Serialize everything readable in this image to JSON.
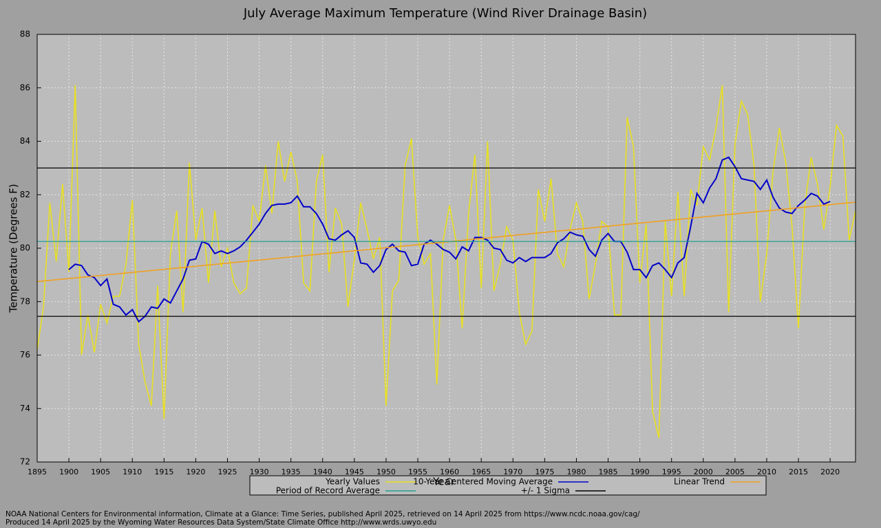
{
  "chart_data": {
    "type": "line",
    "title": "July Average Maximum Temperature (Wind River Drainage Basin)",
    "xlabel": "Year",
    "ylabel": "Temperature (Degrees F)",
    "footer": [
      "NOAA National Centers for Environmental information, Climate at a Glance: Time Series, published April 2025, retrieved on 14 April 2025 from https://www.ncdc.noaa.gov/cag/",
      "Produced 14 April 2025 by the Wyoming Water Resources Data System/State Climate Office http://www.wrds.uwyo.edu"
    ],
    "xlim": [
      1895,
      2024
    ],
    "ylim": [
      72,
      88
    ],
    "xticks": [
      1895,
      1900,
      1905,
      1910,
      1915,
      1920,
      1925,
      1930,
      1935,
      1940,
      1945,
      1950,
      1955,
      1960,
      1965,
      1970,
      1975,
      1980,
      1985,
      1990,
      1995,
      2000,
      2005,
      2010,
      2015,
      2020
    ],
    "yticks": [
      72,
      74,
      76,
      78,
      80,
      82,
      84,
      86,
      88
    ],
    "grid": true,
    "x": [
      1895,
      1896,
      1897,
      1898,
      1899,
      1900,
      1901,
      1902,
      1903,
      1904,
      1905,
      1906,
      1907,
      1908,
      1909,
      1910,
      1911,
      1912,
      1913,
      1914,
      1915,
      1916,
      1917,
      1918,
      1919,
      1920,
      1921,
      1922,
      1923,
      1924,
      1925,
      1926,
      1927,
      1928,
      1929,
      1930,
      1931,
      1932,
      1933,
      1934,
      1935,
      1936,
      1937,
      1938,
      1939,
      1940,
      1941,
      1942,
      1943,
      1944,
      1945,
      1946,
      1947,
      1948,
      1949,
      1950,
      1951,
      1952,
      1953,
      1954,
      1955,
      1956,
      1957,
      1958,
      1959,
      1960,
      1961,
      1962,
      1963,
      1964,
      1965,
      1966,
      1967,
      1968,
      1969,
      1970,
      1971,
      1972,
      1973,
      1974,
      1975,
      1976,
      1977,
      1978,
      1979,
      1980,
      1981,
      1982,
      1983,
      1984,
      1985,
      1986,
      1987,
      1988,
      1989,
      1990,
      1991,
      1992,
      1993,
      1994,
      1995,
      1996,
      1997,
      1998,
      1999,
      2000,
      2001,
      2002,
      2003,
      2004,
      2005,
      2006,
      2007,
      2008,
      2009,
      2010,
      2011,
      2012,
      2013,
      2014,
      2015,
      2016,
      2017,
      2018,
      2019,
      2020,
      2021,
      2022,
      2023,
      2024
    ],
    "series": [
      {
        "name": "Yearly Values",
        "color": "#e8e020",
        "values": [
          76.2,
          77.8,
          81.7,
          79.5,
          82.4,
          79.1,
          86.1,
          76.0,
          77.5,
          76.1,
          77.9,
          77.2,
          78.2,
          78.2,
          79.4,
          81.8,
          76.4,
          75.0,
          74.1,
          78.6,
          73.6,
          79.8,
          81.4,
          77.6,
          83.2,
          80.3,
          81.5,
          78.7,
          81.4,
          79.3,
          80.0,
          78.7,
          78.3,
          78.5,
          81.6,
          81.0,
          83.1,
          81.3,
          84.0,
          82.5,
          83.6,
          82.5,
          78.7,
          78.4,
          82.5,
          83.5,
          79.1,
          81.5,
          80.9,
          77.8,
          79.6,
          81.7,
          80.7,
          79.6,
          80.4,
          74.1,
          78.4,
          78.8,
          83.1,
          84.1,
          80.4,
          79.4,
          79.8,
          74.9,
          80.3,
          81.6,
          80.3,
          77.0,
          81.3,
          83.5,
          78.5,
          84.0,
          78.4,
          79.4,
          80.8,
          80.3,
          77.6,
          76.4,
          76.9,
          82.2,
          81.0,
          82.6,
          79.8,
          79.3,
          80.7,
          81.7,
          81.0,
          78.1,
          79.4,
          81.0,
          80.8,
          77.5,
          77.5,
          84.9,
          83.8,
          78.7,
          80.9,
          73.9,
          72.9,
          81.0,
          78.2,
          82.1,
          78.2,
          82.2,
          81.6,
          83.8,
          83.3,
          84.5,
          86.1,
          77.6,
          83.9,
          85.5,
          85.0,
          83.1,
          78.0,
          79.8,
          82.9,
          84.5,
          83.2,
          80.8,
          77.0,
          81.6,
          83.4,
          82.4,
          80.7,
          82.3,
          84.6,
          84.2,
          80.3,
          81.4
        ]
      },
      {
        "name": "10-Year Centered Moving Average",
        "color": "#0000c8",
        "values": [
          null,
          null,
          null,
          null,
          null,
          79.2,
          79.4,
          79.35,
          79.0,
          78.9,
          78.6,
          78.85,
          77.9,
          77.8,
          77.5,
          77.7,
          77.25,
          77.45,
          77.8,
          77.75,
          78.1,
          77.95,
          78.4,
          78.85,
          79.55,
          79.6,
          80.25,
          80.15,
          79.8,
          79.9,
          79.8,
          79.9,
          80.05,
          80.3,
          80.6,
          80.9,
          81.3,
          81.6,
          81.65,
          81.65,
          81.7,
          81.95,
          81.55,
          81.55,
          81.3,
          80.9,
          80.35,
          80.3,
          80.5,
          80.65,
          80.4,
          79.45,
          79.4,
          79.1,
          79.35,
          79.95,
          80.15,
          79.9,
          79.85,
          79.35,
          79.4,
          80.15,
          80.3,
          80.15,
          79.95,
          79.85,
          79.6,
          80.05,
          79.9,
          80.4,
          80.4,
          80.3,
          80.0,
          79.95,
          79.55,
          79.45,
          79.65,
          79.5,
          79.65,
          79.65,
          79.65,
          79.8,
          80.2,
          80.35,
          80.6,
          80.5,
          80.45,
          79.95,
          79.7,
          80.3,
          80.55,
          80.25,
          80.25,
          79.85,
          79.2,
          79.2,
          78.9,
          79.35,
          79.45,
          79.2,
          78.9,
          79.45,
          79.65,
          80.8,
          82.05,
          81.7,
          82.25,
          82.6,
          83.3,
          83.4,
          83.05,
          82.6,
          82.55,
          82.5,
          82.2,
          82.55,
          81.9,
          81.5,
          81.35,
          81.3,
          81.6,
          81.8,
          82.05,
          81.95,
          81.65,
          81.75,
          null,
          null,
          null,
          null
        ]
      },
      {
        "name": "Linear Trend",
        "color": "#f0a020",
        "x": [
          1895,
          2024
        ],
        "values": [
          78.75,
          81.72
        ]
      },
      {
        "name": "Period of Record Average",
        "color": "#20a090",
        "levels": [
          80.25
        ]
      },
      {
        "name": "+/- 1 Sigma",
        "color": "#000000",
        "levels": [
          83.0,
          77.45
        ]
      }
    ]
  }
}
